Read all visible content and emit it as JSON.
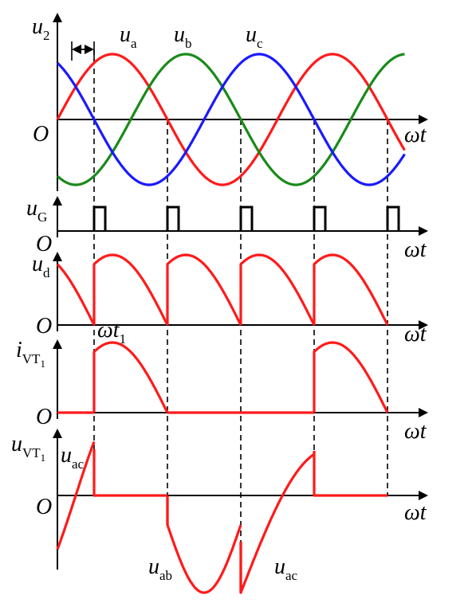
{
  "colors": {
    "a": "#ff1a1a",
    "b": "#1a8a1a",
    "c": "#1a1aff",
    "axis": "#000000"
  },
  "panels": [
    {
      "key": "u2",
      "y_label": "u",
      "y_sub": "2",
      "x_label": "ωt",
      "origin_label": "O"
    },
    {
      "key": "uG",
      "y_label": "u",
      "y_sub": "G",
      "x_label": "ωt",
      "origin_label": "O"
    },
    {
      "key": "ud",
      "y_label": "u",
      "y_sub": "d",
      "x_label": "ωt",
      "origin_label": "O"
    },
    {
      "key": "iVT1",
      "y_label": "i",
      "y_sub": "VT",
      "y_subsub": "1",
      "x_label": "ωt",
      "origin_label": "O"
    },
    {
      "key": "uVT1",
      "y_label": "u",
      "y_sub": "VT",
      "y_subsub": "1",
      "x_label": "ωt",
      "origin_label": "O"
    }
  ],
  "wave_labels": {
    "ua": {
      "base": "u",
      "sub": "a"
    },
    "ub": {
      "base": "u",
      "sub": "b"
    },
    "uc": {
      "base": "u",
      "sub": "c"
    }
  },
  "annotations": {
    "wt1": {
      "base": "ωt",
      "sub": "1"
    },
    "uac_top": {
      "base": "u",
      "sub": "ac"
    },
    "uab": {
      "base": "u",
      "sub": "ab"
    },
    "uac_bottom": {
      "base": "u",
      "sub": "ac"
    }
  },
  "chart_data": {
    "type": "line",
    "description_source": "three-phase half-wave controlled rectifier waveforms",
    "firing_angle_deg": 30,
    "phases": [
      {
        "name": "ua",
        "phase_deg": 0
      },
      {
        "name": "ub",
        "phase_deg": -120
      },
      {
        "name": "uc",
        "phase_deg": 120
      }
    ],
    "firing_points_deg": [
      60,
      180,
      300,
      420,
      540
    ],
    "span_deg": [
      0,
      590
    ]
  }
}
